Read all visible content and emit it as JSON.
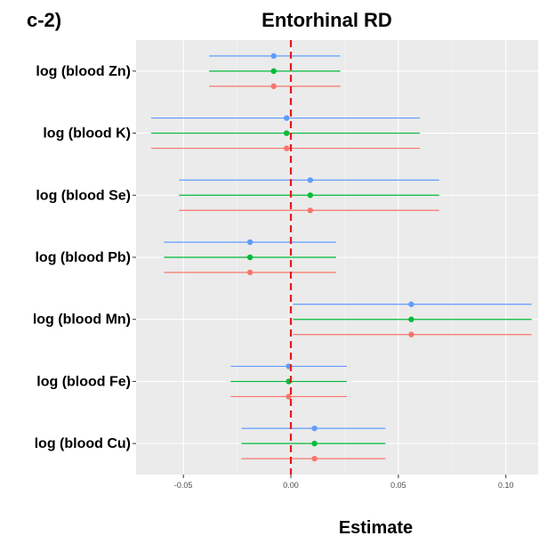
{
  "panel_label": "c-2)",
  "chart_data": {
    "type": "scatter",
    "subtype": "forest-plot",
    "title": "Entorhinal RD",
    "xlabel": "Estimate",
    "ylabel": "",
    "xlim": [
      -0.072,
      0.115
    ],
    "xticks": [
      -0.05,
      0.0,
      0.05,
      0.1
    ],
    "xtick_labels": [
      "-0.05",
      "0.00",
      "0.05",
      "0.10"
    ],
    "reference_line": {
      "x": 0,
      "color": "#e41a1c",
      "style": "dashed"
    },
    "background": "#ebebeb",
    "grid": true,
    "legend": "none",
    "categories": [
      "log (blood Zn)",
      "log (blood K)",
      "log (blood Se)",
      "log (blood Pb)",
      "log (blood Mn)",
      "log (blood Fe)",
      "log (blood Cu)"
    ],
    "series": [
      {
        "color": "#619cff",
        "estimates": [
          -0.008,
          -0.002,
          0.009,
          -0.019,
          0.056,
          -0.001,
          0.011
        ],
        "lower": [
          -0.038,
          -0.065,
          -0.052,
          -0.059,
          0.001,
          -0.028,
          -0.023
        ],
        "upper": [
          0.023,
          0.06,
          0.069,
          0.021,
          0.112,
          0.026,
          0.044
        ]
      },
      {
        "color": "#00ba38",
        "estimates": [
          -0.008,
          -0.002,
          0.009,
          -0.019,
          0.056,
          -0.001,
          0.011
        ],
        "lower": [
          -0.038,
          -0.065,
          -0.052,
          -0.059,
          0.001,
          -0.028,
          -0.023
        ],
        "upper": [
          0.023,
          0.06,
          0.069,
          0.021,
          0.112,
          0.026,
          0.044
        ]
      },
      {
        "color": "#f8766d",
        "estimates": [
          -0.008,
          -0.002,
          0.009,
          -0.019,
          0.056,
          -0.001,
          0.011
        ],
        "lower": [
          -0.038,
          -0.065,
          -0.052,
          -0.059,
          0.001,
          -0.028,
          -0.023
        ],
        "upper": [
          0.023,
          0.06,
          0.069,
          0.021,
          0.112,
          0.026,
          0.044
        ]
      }
    ]
  }
}
